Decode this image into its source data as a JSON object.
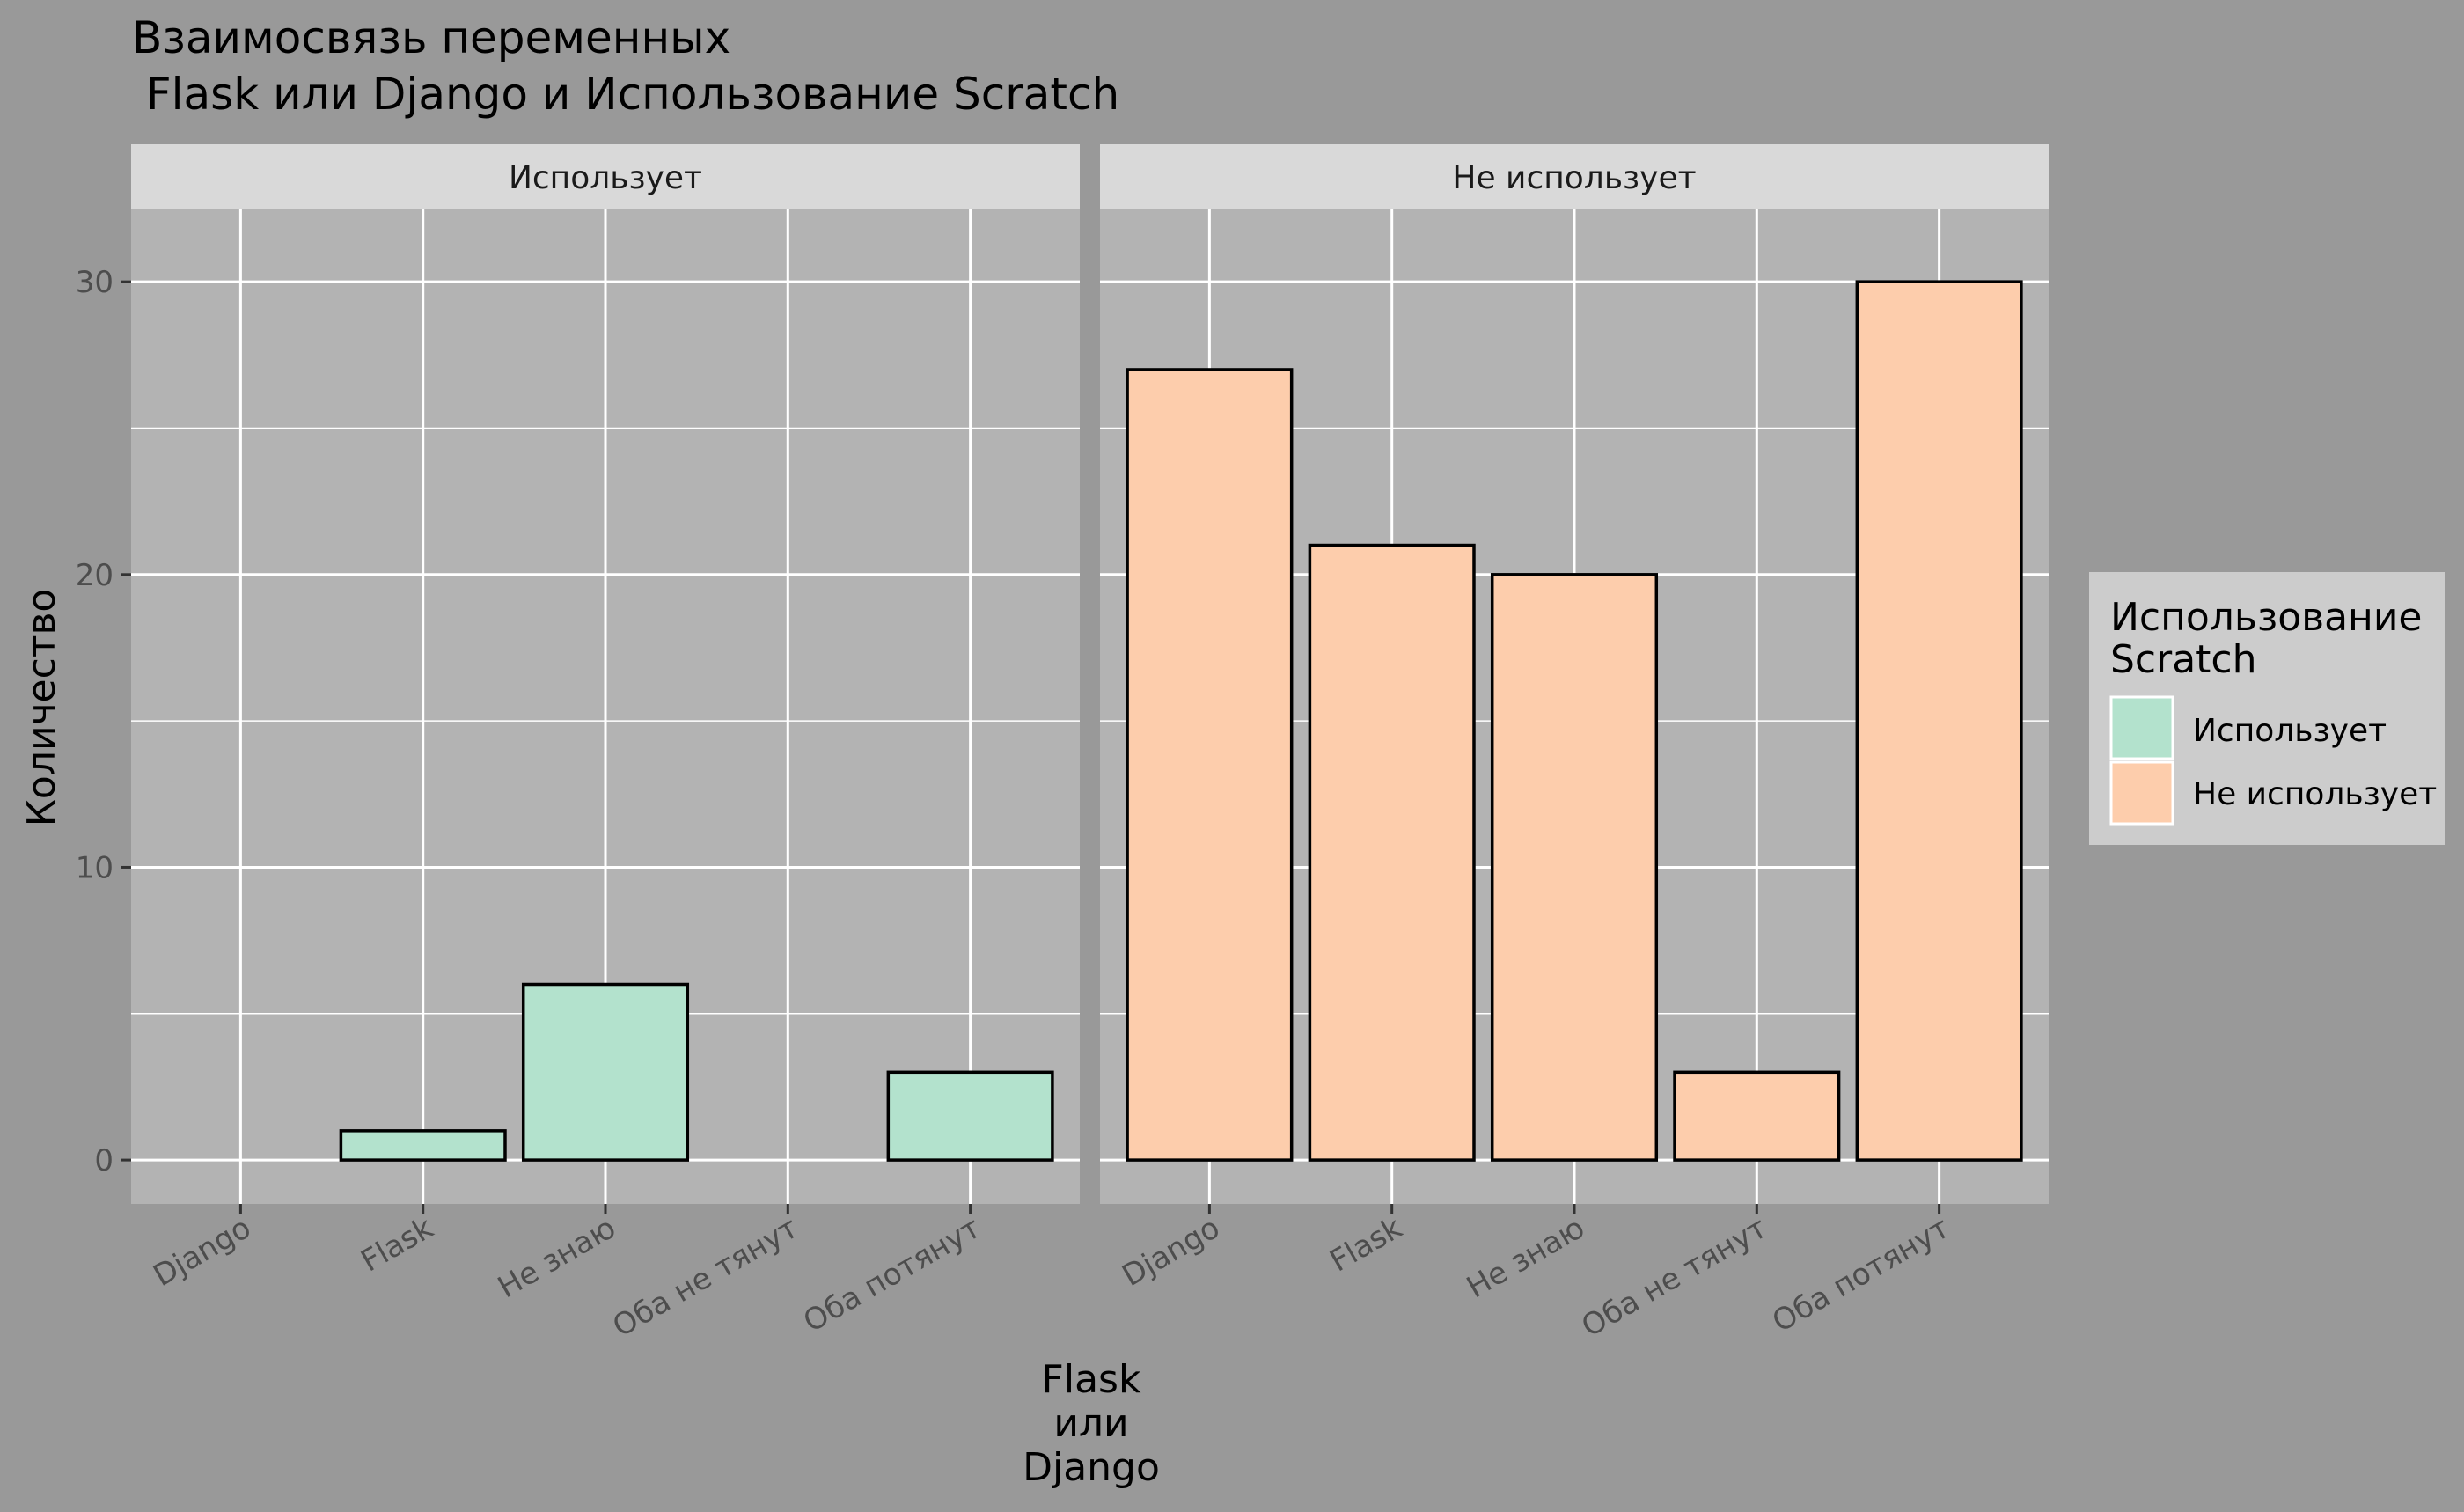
{
  "chart_data": {
    "type": "bar",
    "title_lines": [
      "Взаимосвязь переменных",
      " Flask или Django и Использование Scratch"
    ],
    "xlabel_lines": [
      "Flask",
      "или",
      "Django"
    ],
    "ylabel": "Количество",
    "ylim": [
      -1.5,
      32.5
    ],
    "yticks": [
      0,
      10,
      20,
      30
    ],
    "categories": [
      "Django",
      "Flask",
      "Не знаю",
      "Оба не тянут",
      "Оба потянут"
    ],
    "facets": [
      {
        "name": "Использует",
        "values": [
          0,
          1,
          6,
          0,
          3
        ],
        "color": "#B3E2CD"
      },
      {
        "name": "Не использует",
        "values": [
          27,
          21,
          20,
          3,
          30
        ],
        "color": "#FDCDAC"
      }
    ],
    "legend": {
      "title_lines": [
        "Использование",
        "Scratch"
      ],
      "position": "right",
      "items": [
        {
          "label": "Использует",
          "color": "#B3E2CD"
        },
        {
          "label": "Не использует",
          "color": "#FDCDAC"
        }
      ]
    },
    "grid": true,
    "panel_background": "#B3B3B3",
    "strip_background": "#D9D9D9",
    "plot_background": "#999999",
    "legend_background": "#CCCCCC",
    "grid_color": "#FFFFFF",
    "bar_outline": "#000000"
  }
}
